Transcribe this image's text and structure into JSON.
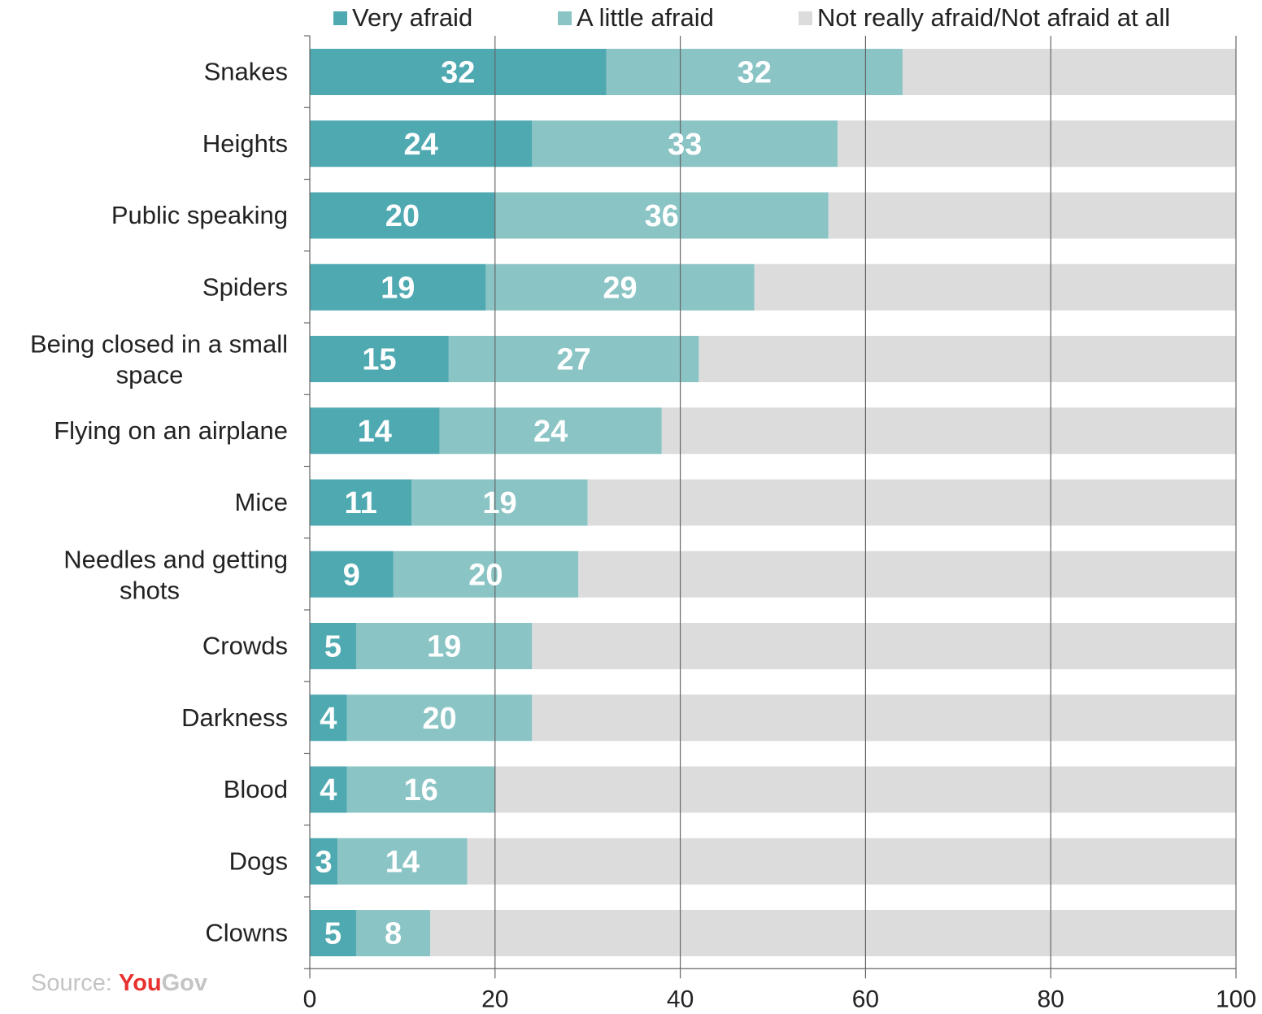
{
  "chart_data": {
    "type": "bar",
    "orientation": "horizontal",
    "stacked": true,
    "categories": [
      "Snakes",
      "Heights",
      "Public speaking",
      "Spiders",
      "Being closed in a small space",
      "Flying on an airplane",
      "Mice",
      "Needles and getting shots",
      "Crowds",
      "Darkness",
      "Blood",
      "Dogs",
      "Clowns"
    ],
    "series": [
      {
        "name": "Very afraid",
        "color": "#4fa9b1",
        "values": [
          32,
          24,
          20,
          19,
          15,
          14,
          11,
          9,
          5,
          4,
          4,
          3,
          5
        ]
      },
      {
        "name": "A little afraid",
        "color": "#8ac4c5",
        "values": [
          32,
          33,
          36,
          29,
          27,
          24,
          19,
          20,
          19,
          20,
          16,
          14,
          8
        ]
      },
      {
        "name": "Not really afraid/Not afraid at all",
        "color": "#dcdcdc",
        "values": [
          36,
          43,
          44,
          52,
          58,
          62,
          70,
          71,
          76,
          76,
          80,
          83,
          87
        ]
      }
    ],
    "xlim": [
      0,
      100
    ],
    "xticks": [
      "0",
      "20",
      "40",
      "60",
      "80",
      "100"
    ],
    "grid": true,
    "legend_position": "top",
    "data_labels": "first two series, white, inside bars"
  },
  "source": {
    "prefix": "Source: ",
    "brand_you": "You",
    "brand_gov": "Gov"
  }
}
